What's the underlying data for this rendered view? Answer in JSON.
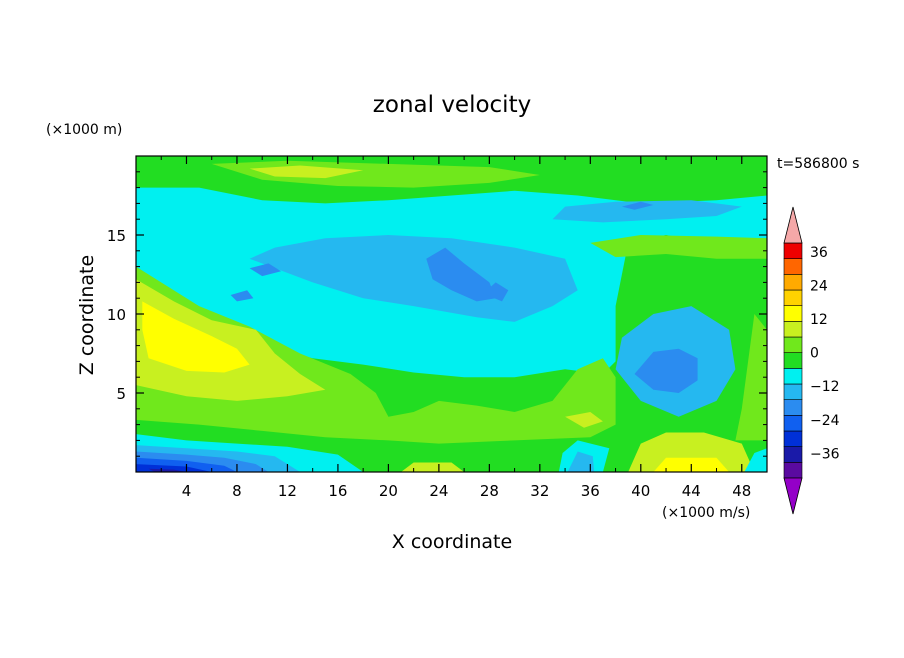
{
  "chart_data": {
    "type": "heatmap",
    "title": "zonal velocity",
    "xlabel": "X coordinate",
    "ylabel": "Z coordinate",
    "y_units": "(×1000 m)",
    "colorbar_units": "(×1000 m/s)",
    "time_label": "t=586800 s",
    "xlim": [
      0,
      50
    ],
    "ylim": [
      0,
      20
    ],
    "x_ticks": [
      "4",
      "8",
      "12",
      "16",
      "20",
      "24",
      "28",
      "32",
      "36",
      "40",
      "44",
      "48"
    ],
    "y_ticks": [
      "5",
      "10",
      "15"
    ],
    "colorbar": {
      "levels": [
        -42,
        -36,
        -30,
        -24,
        -18,
        -12,
        -6,
        0,
        6,
        12,
        18,
        24,
        30,
        36,
        42
      ],
      "tick_labels": [
        "36",
        "24",
        "12",
        "0",
        "−12",
        "−24",
        "−36"
      ],
      "colors": [
        "#5a0aa0",
        "#1a1aa8",
        "#0030d8",
        "#1060f0",
        "#2b8cf0",
        "#25b8f0",
        "#00f0f0",
        "#22dd22",
        "#70e81c",
        "#c8f020",
        "#ffff00",
        "#ffd200",
        "#ffaa00",
        "#ff6600",
        "#ee0000"
      ],
      "over_color": "#f5a8a8",
      "under_color": "#9400c8"
    },
    "bands": [
      {
        "level": -6,
        "points": [
          [
            0,
            11.5
          ],
          [
            5,
            9
          ],
          [
            10,
            8
          ],
          [
            14,
            7.2
          ],
          [
            18,
            6.8
          ],
          [
            22,
            6.3
          ],
          [
            26,
            6
          ],
          [
            30,
            6
          ],
          [
            34,
            6.5
          ],
          [
            37,
            6.2
          ],
          [
            38,
            7
          ],
          [
            38,
            10.5
          ],
          [
            39,
            14.5
          ],
          [
            42,
            15
          ],
          [
            45,
            14.5
          ],
          [
            50,
            14.5
          ],
          [
            50,
            17.5
          ],
          [
            46,
            17.2
          ],
          [
            40,
            17
          ],
          [
            35,
            17.5
          ],
          [
            30,
            17.8
          ],
          [
            25,
            17.5
          ],
          [
            20,
            17.2
          ],
          [
            15,
            17
          ],
          [
            10,
            17.2
          ],
          [
            5,
            18
          ],
          [
            0,
            18
          ]
        ]
      },
      {
        "level": -12,
        "points": [
          [
            9,
            13.5
          ],
          [
            14,
            12
          ],
          [
            18,
            11
          ],
          [
            22,
            10.5
          ],
          [
            27,
            9.8
          ],
          [
            30,
            9.5
          ],
          [
            33,
            10.5
          ],
          [
            35,
            11.5
          ],
          [
            34,
            13.5
          ],
          [
            30,
            14.2
          ],
          [
            25,
            14.8
          ],
          [
            20,
            15
          ],
          [
            15,
            14.8
          ],
          [
            11,
            14.2
          ]
        ]
      },
      {
        "level": -12,
        "points": [
          [
            38,
            6.5
          ],
          [
            40,
            4.5
          ],
          [
            43,
            3.5
          ],
          [
            46,
            4.5
          ],
          [
            47.5,
            6.5
          ],
          [
            47,
            9
          ],
          [
            44,
            10.5
          ],
          [
            41,
            10
          ],
          [
            38.5,
            8.5
          ]
        ]
      },
      {
        "level": -12,
        "points": [
          [
            33,
            16
          ],
          [
            37,
            15.8
          ],
          [
            42,
            16
          ],
          [
            46,
            16.2
          ],
          [
            48,
            16.8
          ],
          [
            44,
            17.2
          ],
          [
            38,
            17.1
          ],
          [
            34,
            16.8
          ]
        ]
      },
      {
        "level": -18,
        "points": [
          [
            39.5,
            6.2
          ],
          [
            41,
            5.2
          ],
          [
            43,
            5
          ],
          [
            44.5,
            5.8
          ],
          [
            44.5,
            7.2
          ],
          [
            43,
            7.8
          ],
          [
            41,
            7.6
          ]
        ]
      },
      {
        "level": -18,
        "points": [
          [
            23,
            13.5
          ],
          [
            24.5,
            14.2
          ],
          [
            26,
            13.2
          ],
          [
            28,
            12
          ],
          [
            28.5,
            11
          ],
          [
            27,
            10.8
          ],
          [
            25,
            11.5
          ],
          [
            23.5,
            12.2
          ]
        ]
      },
      {
        "level": -18,
        "points": [
          [
            27.5,
            11.3
          ],
          [
            28.5,
            12
          ],
          [
            29.5,
            11.5
          ],
          [
            29,
            10.8
          ]
        ]
      },
      {
        "level": -18,
        "points": [
          [
            9,
            12.9
          ],
          [
            10.5,
            13.2
          ],
          [
            11.5,
            12.7
          ],
          [
            10,
            12.4
          ]
        ]
      },
      {
        "level": -18,
        "points": [
          [
            7.5,
            11.2
          ],
          [
            8.8,
            11.5
          ],
          [
            9.3,
            11
          ],
          [
            8,
            10.8
          ]
        ]
      },
      {
        "level": -18,
        "points": [
          [
            38.5,
            16.8
          ],
          [
            40,
            17.1
          ],
          [
            41,
            16.9
          ],
          [
            39.5,
            16.6
          ]
        ]
      },
      {
        "level": 6,
        "points": [
          [
            0,
            13
          ],
          [
            5,
            10.5
          ],
          [
            9,
            9.2
          ],
          [
            13,
            7.5
          ],
          [
            17,
            6.2
          ],
          [
            19,
            5
          ],
          [
            20,
            3.5
          ],
          [
            22,
            3.8
          ],
          [
            24,
            4.5
          ],
          [
            27,
            4.2
          ],
          [
            30,
            3.8
          ],
          [
            33,
            4.5
          ],
          [
            35,
            6.5
          ],
          [
            37,
            7.2
          ],
          [
            38,
            6
          ],
          [
            38,
            3
          ],
          [
            36,
            2.2
          ],
          [
            30,
            2
          ],
          [
            24,
            1.8
          ],
          [
            20,
            2
          ],
          [
            15,
            2.2
          ],
          [
            10,
            2.6
          ],
          [
            5,
            3
          ],
          [
            0,
            3.3
          ]
        ]
      },
      {
        "level": 6,
        "points": [
          [
            47.5,
            2
          ],
          [
            50,
            2
          ],
          [
            50,
            9
          ],
          [
            49,
            10
          ],
          [
            48.5,
            7
          ],
          [
            48,
            4
          ]
        ]
      },
      {
        "level": 6,
        "points": [
          [
            6,
            19.5
          ],
          [
            12,
            19.7
          ],
          [
            20,
            19.5
          ],
          [
            28,
            19.3
          ],
          [
            32,
            18.8
          ],
          [
            28,
            18.3
          ],
          [
            22,
            18
          ],
          [
            16,
            18.1
          ],
          [
            10,
            18.5
          ]
        ]
      },
      {
        "level": 6,
        "points": [
          [
            36,
            14.5
          ],
          [
            40,
            15
          ],
          [
            46,
            14.9
          ],
          [
            50,
            14.8
          ],
          [
            50,
            13.5
          ],
          [
            46,
            13.5
          ],
          [
            42,
            13.8
          ],
          [
            38,
            13.6
          ]
        ]
      },
      {
        "level": 12,
        "points": [
          [
            0,
            12.2
          ],
          [
            3,
            10.8
          ],
          [
            6,
            9.6
          ],
          [
            9.5,
            9
          ],
          [
            11,
            7.5
          ],
          [
            13,
            6.2
          ],
          [
            15,
            5.2
          ],
          [
            12,
            4.8
          ],
          [
            8,
            4.5
          ],
          [
            4,
            4.8
          ],
          [
            0,
            5.5
          ]
        ]
      },
      {
        "level": 12,
        "points": [
          [
            9,
            19.2
          ],
          [
            13,
            19.4
          ],
          [
            18,
            19.1
          ],
          [
            15,
            18.6
          ],
          [
            11,
            18.7
          ]
        ]
      },
      {
        "level": 12,
        "points": [
          [
            21,
            0
          ],
          [
            26,
            0
          ],
          [
            25,
            0.6
          ],
          [
            22,
            0.6
          ]
        ]
      },
      {
        "level": 12,
        "points": [
          [
            39,
            0
          ],
          [
            49,
            0
          ],
          [
            48,
            1.8
          ],
          [
            45,
            2.5
          ],
          [
            42,
            2.5
          ],
          [
            40,
            1.8
          ]
        ]
      },
      {
        "level": 12,
        "points": [
          [
            34,
            3.5
          ],
          [
            36,
            3.8
          ],
          [
            37,
            3.2
          ],
          [
            35.5,
            2.8
          ]
        ]
      },
      {
        "level": 18,
        "points": [
          [
            0.5,
            10.8
          ],
          [
            3,
            9.7
          ],
          [
            6,
            8.6
          ],
          [
            8,
            7.8
          ],
          [
            9,
            6.8
          ],
          [
            7,
            6.3
          ],
          [
            4,
            6.4
          ],
          [
            1,
            7.2
          ],
          [
            0.5,
            9
          ]
        ]
      },
      {
        "level": 18,
        "points": [
          [
            41,
            0
          ],
          [
            47,
            0
          ],
          [
            46,
            0.9
          ],
          [
            42,
            0.9
          ]
        ]
      },
      {
        "level": -6,
        "points": [
          [
            0,
            2.4
          ],
          [
            4,
            2
          ],
          [
            8,
            1.8
          ],
          [
            12,
            1.6
          ],
          [
            16,
            1.1
          ],
          [
            18,
            0
          ],
          [
            0,
            0
          ]
        ]
      },
      {
        "level": -12,
        "points": [
          [
            0,
            1.7
          ],
          [
            4,
            1.5
          ],
          [
            8,
            1.3
          ],
          [
            11,
            1
          ],
          [
            13,
            0
          ],
          [
            0,
            0
          ]
        ]
      },
      {
        "level": -18,
        "points": [
          [
            0,
            1.3
          ],
          [
            4,
            1.1
          ],
          [
            7,
            0.9
          ],
          [
            9.5,
            0.5
          ],
          [
            10.5,
            0
          ],
          [
            0,
            0
          ]
        ]
      },
      {
        "level": -24,
        "points": [
          [
            0,
            0.9
          ],
          [
            4,
            0.7
          ],
          [
            7,
            0.4
          ],
          [
            8,
            0
          ],
          [
            0,
            0
          ]
        ]
      },
      {
        "level": -30,
        "points": [
          [
            0,
            0.5
          ],
          [
            4,
            0.35
          ],
          [
            6,
            0
          ],
          [
            0,
            0
          ]
        ]
      },
      {
        "level": -36,
        "points": [
          [
            1,
            0.2
          ],
          [
            3,
            0.15
          ],
          [
            4,
            0
          ],
          [
            1.5,
            0
          ]
        ]
      },
      {
        "level": -6,
        "points": [
          [
            33.5,
            0
          ],
          [
            37,
            0
          ],
          [
            37.5,
            1.5
          ],
          [
            35,
            2
          ],
          [
            33.8,
            1.2
          ]
        ]
      },
      {
        "level": -12,
        "points": [
          [
            34.2,
            0
          ],
          [
            36.3,
            0
          ],
          [
            36.2,
            1
          ],
          [
            35,
            1.3
          ]
        ]
      },
      {
        "level": -6,
        "points": [
          [
            48.2,
            0
          ],
          [
            50,
            0
          ],
          [
            50,
            1.5
          ],
          [
            49,
            1.2
          ]
        ]
      }
    ]
  }
}
